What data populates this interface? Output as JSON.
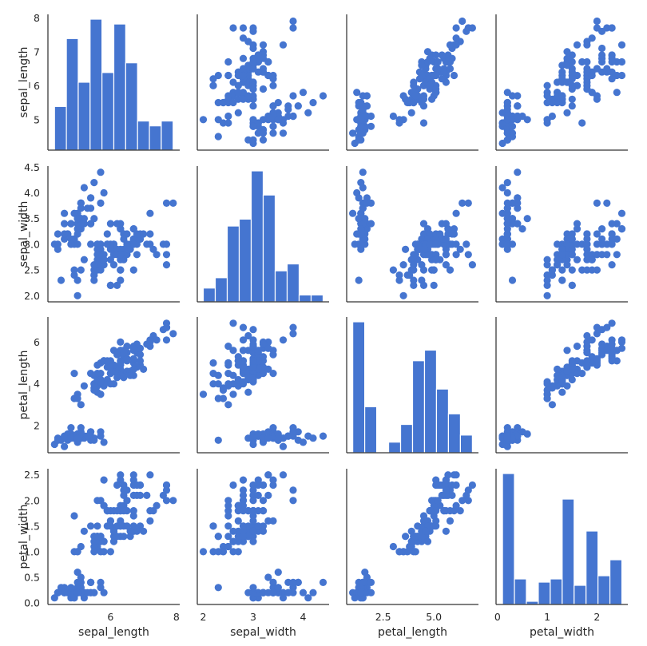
{
  "chart_data": {
    "type": "pairplot",
    "dataset": "iris",
    "variables": [
      "sepal_length",
      "sepal_width",
      "petal_length",
      "petal_width"
    ],
    "color": "#4575d0",
    "axes": {
      "sepal_length": {
        "label": "sepal_length",
        "lim": [
          4.1,
          8.1
        ],
        "ticks": [
          {
            "v": 5,
            "label": "5"
          },
          {
            "v": 6,
            "label": "6"
          },
          {
            "v": 7,
            "label": "7"
          },
          {
            "v": 8,
            "label": "8"
          }
        ],
        "bottom_ticks": [
          {
            "v": 6,
            "label": "6"
          },
          {
            "v": 8,
            "label": "8"
          }
        ]
      },
      "sepal_width": {
        "label": "sepal_width",
        "lim": [
          1.88,
          4.52
        ],
        "ticks": [
          {
            "v": 2.0,
            "label": "2.0"
          },
          {
            "v": 2.5,
            "label": "2.5"
          },
          {
            "v": 3.0,
            "label": "3.0"
          },
          {
            "v": 3.5,
            "label": "3.5"
          },
          {
            "v": 4.0,
            "label": "4.0"
          },
          {
            "v": 4.5,
            "label": "4.5"
          }
        ],
        "bottom_ticks": [
          {
            "v": 2,
            "label": "2"
          },
          {
            "v": 3,
            "label": "3"
          },
          {
            "v": 4,
            "label": "4"
          }
        ]
      },
      "petal_length": {
        "label": "petal_length",
        "lim": [
          0.7,
          7.2
        ],
        "ticks": [
          {
            "v": 2,
            "label": "2"
          },
          {
            "v": 4,
            "label": "4"
          },
          {
            "v": 6,
            "label": "6"
          }
        ],
        "bottom_ticks": [
          {
            "v": 2.5,
            "label": "2.5"
          },
          {
            "v": 5.0,
            "label": "5.0"
          }
        ]
      },
      "petal_width": {
        "label": "petal_width",
        "lim": [
          -0.03,
          2.62
        ],
        "ticks": [
          {
            "v": 0.0,
            "label": "0.0"
          },
          {
            "v": 0.5,
            "label": "0.5"
          },
          {
            "v": 1.0,
            "label": "1.0"
          },
          {
            "v": 1.5,
            "label": "1.5"
          },
          {
            "v": 2.0,
            "label": "2.0"
          },
          {
            "v": 2.5,
            "label": "2.5"
          }
        ],
        "bottom_ticks": [
          {
            "v": 0,
            "label": "0"
          },
          {
            "v": 1,
            "label": "1"
          },
          {
            "v": 2,
            "label": "2"
          }
        ]
      }
    },
    "histograms": {
      "sepal_length": {
        "edges": [
          4.3,
          4.66,
          5.02,
          5.38,
          5.74,
          6.1,
          6.46,
          6.82,
          7.18,
          7.54,
          7.9
        ],
        "counts": [
          9,
          23,
          14,
          27,
          16,
          26,
          18,
          6,
          5,
          6
        ]
      },
      "sepal_width": {
        "edges": [
          2.0,
          2.24,
          2.48,
          2.72,
          2.96,
          3.2,
          3.44,
          3.68,
          3.92,
          4.16,
          4.4
        ],
        "counts": [
          4,
          7,
          22,
          24,
          38,
          31,
          9,
          11,
          2,
          2
        ]
      },
      "petal_length": {
        "edges": [
          1.0,
          1.59,
          2.18,
          2.77,
          3.36,
          3.95,
          4.54,
          5.13,
          5.72,
          6.31,
          6.9
        ],
        "counts": [
          37,
          13,
          0,
          3,
          8,
          26,
          29,
          18,
          11,
          5
        ]
      },
      "petal_width": {
        "edges": [
          0.1,
          0.34,
          0.58,
          0.82,
          1.06,
          1.3,
          1.54,
          1.78,
          2.02,
          2.26,
          2.5
        ],
        "counts": [
          41,
          8,
          1,
          7,
          8,
          33,
          6,
          23,
          9,
          14
        ]
      }
    },
    "points": [
      [
        5.1,
        3.5,
        1.4,
        0.2
      ],
      [
        4.9,
        3.0,
        1.4,
        0.2
      ],
      [
        4.7,
        3.2,
        1.3,
        0.2
      ],
      [
        4.6,
        3.1,
        1.5,
        0.2
      ],
      [
        5.0,
        3.6,
        1.4,
        0.2
      ],
      [
        5.4,
        3.9,
        1.7,
        0.4
      ],
      [
        4.6,
        3.4,
        1.4,
        0.3
      ],
      [
        5.0,
        3.4,
        1.5,
        0.2
      ],
      [
        4.4,
        2.9,
        1.4,
        0.2
      ],
      [
        4.9,
        3.1,
        1.5,
        0.1
      ],
      [
        5.4,
        3.7,
        1.5,
        0.2
      ],
      [
        4.8,
        3.4,
        1.6,
        0.2
      ],
      [
        4.8,
        3.0,
        1.4,
        0.1
      ],
      [
        4.3,
        3.0,
        1.1,
        0.1
      ],
      [
        5.8,
        4.0,
        1.2,
        0.2
      ],
      [
        5.7,
        4.4,
        1.5,
        0.4
      ],
      [
        5.4,
        3.9,
        1.3,
        0.4
      ],
      [
        5.1,
        3.5,
        1.4,
        0.3
      ],
      [
        5.7,
        3.8,
        1.7,
        0.3
      ],
      [
        5.1,
        3.8,
        1.5,
        0.3
      ],
      [
        5.4,
        3.4,
        1.7,
        0.2
      ],
      [
        5.1,
        3.7,
        1.5,
        0.4
      ],
      [
        4.6,
        3.6,
        1.0,
        0.2
      ],
      [
        5.1,
        3.3,
        1.7,
        0.5
      ],
      [
        4.8,
        3.4,
        1.9,
        0.2
      ],
      [
        5.0,
        3.0,
        1.6,
        0.2
      ],
      [
        5.0,
        3.4,
        1.6,
        0.4
      ],
      [
        5.2,
        3.5,
        1.5,
        0.2
      ],
      [
        5.2,
        3.4,
        1.4,
        0.2
      ],
      [
        4.7,
        3.2,
        1.6,
        0.2
      ],
      [
        4.8,
        3.1,
        1.6,
        0.2
      ],
      [
        5.4,
        3.4,
        1.5,
        0.4
      ],
      [
        5.2,
        4.1,
        1.5,
        0.1
      ],
      [
        5.5,
        4.2,
        1.4,
        0.2
      ],
      [
        4.9,
        3.1,
        1.5,
        0.2
      ],
      [
        5.0,
        3.2,
        1.2,
        0.2
      ],
      [
        5.5,
        3.5,
        1.3,
        0.2
      ],
      [
        4.9,
        3.6,
        1.4,
        0.1
      ],
      [
        4.4,
        3.0,
        1.3,
        0.2
      ],
      [
        5.1,
        3.4,
        1.5,
        0.2
      ],
      [
        5.0,
        3.5,
        1.3,
        0.3
      ],
      [
        4.5,
        2.3,
        1.3,
        0.3
      ],
      [
        4.4,
        3.2,
        1.3,
        0.2
      ],
      [
        5.0,
        3.5,
        1.6,
        0.6
      ],
      [
        5.1,
        3.8,
        1.9,
        0.4
      ],
      [
        4.8,
        3.0,
        1.4,
        0.3
      ],
      [
        5.1,
        3.8,
        1.6,
        0.2
      ],
      [
        4.6,
        3.2,
        1.4,
        0.2
      ],
      [
        5.3,
        3.7,
        1.5,
        0.2
      ],
      [
        5.0,
        3.3,
        1.4,
        0.2
      ],
      [
        7.0,
        3.2,
        4.7,
        1.4
      ],
      [
        6.4,
        3.2,
        4.5,
        1.5
      ],
      [
        6.9,
        3.1,
        4.9,
        1.5
      ],
      [
        5.5,
        2.3,
        4.0,
        1.3
      ],
      [
        6.5,
        2.8,
        4.6,
        1.5
      ],
      [
        5.7,
        2.8,
        4.5,
        1.3
      ],
      [
        6.3,
        3.3,
        4.7,
        1.6
      ],
      [
        4.9,
        2.4,
        3.3,
        1.0
      ],
      [
        6.6,
        2.9,
        4.6,
        1.3
      ],
      [
        5.2,
        2.7,
        3.9,
        1.4
      ],
      [
        5.0,
        2.0,
        3.5,
        1.0
      ],
      [
        5.9,
        3.0,
        4.2,
        1.5
      ],
      [
        6.0,
        2.2,
        4.0,
        1.0
      ],
      [
        6.1,
        2.9,
        4.7,
        1.4
      ],
      [
        5.6,
        2.9,
        3.6,
        1.3
      ],
      [
        6.7,
        3.1,
        4.4,
        1.4
      ],
      [
        5.6,
        3.0,
        4.5,
        1.5
      ],
      [
        5.8,
        2.7,
        4.1,
        1.0
      ],
      [
        6.2,
        2.2,
        4.5,
        1.5
      ],
      [
        5.6,
        2.5,
        3.9,
        1.1
      ],
      [
        5.9,
        3.2,
        4.8,
        1.8
      ],
      [
        6.1,
        2.8,
        4.0,
        1.3
      ],
      [
        6.3,
        2.5,
        4.9,
        1.5
      ],
      [
        6.1,
        2.8,
        4.7,
        1.2
      ],
      [
        6.4,
        2.9,
        4.3,
        1.3
      ],
      [
        6.6,
        3.0,
        4.4,
        1.4
      ],
      [
        6.8,
        2.8,
        4.8,
        1.4
      ],
      [
        6.7,
        3.0,
        5.0,
        1.7
      ],
      [
        6.0,
        2.9,
        4.5,
        1.5
      ],
      [
        5.7,
        2.6,
        3.5,
        1.0
      ],
      [
        5.5,
        2.4,
        3.8,
        1.1
      ],
      [
        5.5,
        2.4,
        3.7,
        1.0
      ],
      [
        5.8,
        2.7,
        3.9,
        1.2
      ],
      [
        6.0,
        2.7,
        5.1,
        1.6
      ],
      [
        5.4,
        3.0,
        4.5,
        1.5
      ],
      [
        6.0,
        3.4,
        4.5,
        1.6
      ],
      [
        6.7,
        3.1,
        4.7,
        1.5
      ],
      [
        6.3,
        2.3,
        4.4,
        1.3
      ],
      [
        5.6,
        3.0,
        4.1,
        1.3
      ],
      [
        5.5,
        2.5,
        4.0,
        1.3
      ],
      [
        5.5,
        2.6,
        4.4,
        1.2
      ],
      [
        6.1,
        3.0,
        4.6,
        1.4
      ],
      [
        5.8,
        2.6,
        4.0,
        1.2
      ],
      [
        5.0,
        2.3,
        3.3,
        1.0
      ],
      [
        5.6,
        2.7,
        4.2,
        1.3
      ],
      [
        5.7,
        3.0,
        4.2,
        1.2
      ],
      [
        5.7,
        2.9,
        4.2,
        1.3
      ],
      [
        6.2,
        2.9,
        4.3,
        1.3
      ],
      [
        5.1,
        2.5,
        3.0,
        1.1
      ],
      [
        5.7,
        2.8,
        4.1,
        1.3
      ],
      [
        6.3,
        3.3,
        6.0,
        2.5
      ],
      [
        5.8,
        2.7,
        5.1,
        1.9
      ],
      [
        7.1,
        3.0,
        5.9,
        2.1
      ],
      [
        6.3,
        2.9,
        5.6,
        1.8
      ],
      [
        6.5,
        3.0,
        5.8,
        2.2
      ],
      [
        7.6,
        3.0,
        6.6,
        2.1
      ],
      [
        4.9,
        2.5,
        4.5,
        1.7
      ],
      [
        7.3,
        2.9,
        6.3,
        1.8
      ],
      [
        6.7,
        2.5,
        5.8,
        1.8
      ],
      [
        7.2,
        3.6,
        6.1,
        2.5
      ],
      [
        6.5,
        3.2,
        5.1,
        2.0
      ],
      [
        6.4,
        2.7,
        5.3,
        1.9
      ],
      [
        6.8,
        3.0,
        5.5,
        2.1
      ],
      [
        5.7,
        2.5,
        5.0,
        2.0
      ],
      [
        5.8,
        2.8,
        5.1,
        2.4
      ],
      [
        6.4,
        3.2,
        5.3,
        2.3
      ],
      [
        6.5,
        3.0,
        5.5,
        1.8
      ],
      [
        7.7,
        3.8,
        6.7,
        2.2
      ],
      [
        7.7,
        2.6,
        6.9,
        2.3
      ],
      [
        6.0,
        2.2,
        5.0,
        1.5
      ],
      [
        6.9,
        3.2,
        5.7,
        2.3
      ],
      [
        5.6,
        2.8,
        4.9,
        2.0
      ],
      [
        7.7,
        2.8,
        6.7,
        2.0
      ],
      [
        6.3,
        2.7,
        4.9,
        1.8
      ],
      [
        6.7,
        3.3,
        5.7,
        2.1
      ],
      [
        7.2,
        3.2,
        6.0,
        1.8
      ],
      [
        6.2,
        2.8,
        4.8,
        1.8
      ],
      [
        6.1,
        3.0,
        4.9,
        1.8
      ],
      [
        6.4,
        2.8,
        5.6,
        2.1
      ],
      [
        7.2,
        3.0,
        5.8,
        1.6
      ],
      [
        7.4,
        2.8,
        6.1,
        1.9
      ],
      [
        7.9,
        3.8,
        6.4,
        2.0
      ],
      [
        6.4,
        2.8,
        5.6,
        2.2
      ],
      [
        6.3,
        2.8,
        5.1,
        1.5
      ],
      [
        6.1,
        2.6,
        5.6,
        1.4
      ],
      [
        7.7,
        3.0,
        6.1,
        2.3
      ],
      [
        6.3,
        3.4,
        5.6,
        2.4
      ],
      [
        6.4,
        3.1,
        5.5,
        1.8
      ],
      [
        6.0,
        3.0,
        4.8,
        1.8
      ],
      [
        6.9,
        3.1,
        5.4,
        2.1
      ],
      [
        6.7,
        3.1,
        5.6,
        2.4
      ],
      [
        6.9,
        3.1,
        5.1,
        2.3
      ],
      [
        5.8,
        2.7,
        5.1,
        1.9
      ],
      [
        6.8,
        3.2,
        5.9,
        2.3
      ],
      [
        6.7,
        3.3,
        5.7,
        2.5
      ],
      [
        6.7,
        3.0,
        5.2,
        2.3
      ],
      [
        6.3,
        2.5,
        5.0,
        1.9
      ],
      [
        6.5,
        3.0,
        5.2,
        2.0
      ],
      [
        6.2,
        3.4,
        5.4,
        2.3
      ],
      [
        5.9,
        3.0,
        5.1,
        1.8
      ]
    ]
  }
}
